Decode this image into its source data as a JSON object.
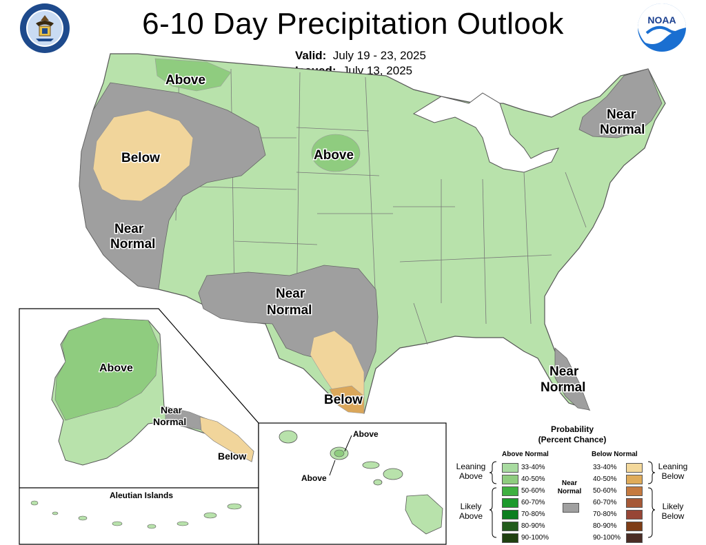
{
  "header": {
    "title": "6-10 Day Precipitation Outlook",
    "valid_label": "Valid:",
    "valid_value": "July 19 - 23, 2025",
    "issued_label": "Issued:",
    "issued_value": "July 13, 2025"
  },
  "logos": {
    "left": "department-of-commerce-seal",
    "right": "noaa-logo",
    "noaa_text": "NOAA"
  },
  "map_labels": {
    "above_northwest": "Above",
    "below_west": "Below",
    "near_normal_west": "Near",
    "near_normal_west_2": "Normal",
    "above_dakotas": "Above",
    "near_normal_southwest": "Near",
    "near_normal_southwest_2": "Normal",
    "below_texas": "Below",
    "near_normal_northeast": "Near",
    "near_normal_northeast_2": "Normal",
    "near_normal_florida": "Near",
    "near_normal_florida_2": "Normal"
  },
  "alaska_labels": {
    "above": "Above",
    "near_normal": "Near",
    "near_normal_2": "Normal",
    "below": "Below",
    "aleutian_title": "Aleutian Islands"
  },
  "hawaii_labels": {
    "above_top": "Above",
    "above_left": "Above"
  },
  "legend": {
    "title_line1": "Probability",
    "title_line2": "(Percent Chance)",
    "above_header": "Above Normal",
    "below_header": "Below Normal",
    "near_label_1": "Near",
    "near_label_2": "Normal",
    "leaning_above_1": "Leaning",
    "leaning_above_2": "Above",
    "likely_above_1": "Likely",
    "likely_above_2": "Above",
    "leaning_below_1": "Leaning",
    "leaning_below_2": "Below",
    "likely_below_1": "Likely",
    "likely_below_2": "Below",
    "above_bins": [
      {
        "label": "33-40%",
        "color": "#a8dba0"
      },
      {
        "label": "40-50%",
        "color": "#8fcc7f"
      },
      {
        "label": "50-60%",
        "color": "#3fb040"
      },
      {
        "label": "60-70%",
        "color": "#1d9a2c"
      },
      {
        "label": "70-80%",
        "color": "#0c7e1f"
      },
      {
        "label": "80-90%",
        "color": "#225c1c"
      },
      {
        "label": "90-100%",
        "color": "#1f4010"
      }
    ],
    "below_bins": [
      {
        "label": "33-40%",
        "color": "#f3d89b"
      },
      {
        "label": "40-50%",
        "color": "#dfab5a"
      },
      {
        "label": "50-60%",
        "color": "#c57a40"
      },
      {
        "label": "60-70%",
        "color": "#a65937"
      },
      {
        "label": "70-80%",
        "color": "#974636"
      },
      {
        "label": "80-90%",
        "color": "#7e3d16"
      },
      {
        "label": "90-100%",
        "color": "#4a2d25"
      }
    ],
    "near_color": "#a0a0a0"
  },
  "colors": {
    "leaning_above": "#b8e2ab",
    "above_40_50": "#8fcc7f",
    "near_normal": "#9f9f9f",
    "leaning_below": "#f1d59b",
    "below_40_50": "#dba75a",
    "border": "#555555"
  }
}
